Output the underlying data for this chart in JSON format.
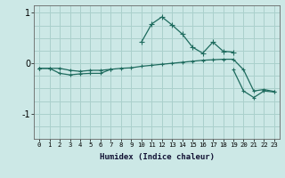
{
  "xlabel": "Humidex (Indice chaleur)",
  "x_values": [
    0,
    1,
    2,
    3,
    4,
    5,
    6,
    7,
    8,
    9,
    10,
    11,
    12,
    13,
    14,
    15,
    16,
    17,
    18,
    19,
    20,
    21,
    22,
    23
  ],
  "line1": [
    null,
    null,
    null,
    null,
    null,
    null,
    null,
    null,
    null,
    null,
    0.42,
    0.78,
    0.92,
    0.76,
    0.58,
    0.32,
    0.2,
    0.42,
    0.24,
    0.22,
    null,
    null,
    null,
    null
  ],
  "line2": [
    -0.1,
    -0.1,
    -0.1,
    -0.14,
    -0.16,
    -0.14,
    -0.14,
    -0.12,
    -0.1,
    -0.09,
    -0.06,
    -0.04,
    -0.02,
    0.0,
    0.02,
    0.04,
    0.06,
    0.07,
    0.08,
    0.08,
    -0.13,
    -0.55,
    -0.52,
    -0.56
  ],
  "line3": [
    -0.1,
    -0.1,
    -0.2,
    -0.23,
    -0.21,
    -0.2,
    -0.2,
    -0.12,
    null,
    null,
    null,
    null,
    null,
    null,
    null,
    null,
    null,
    null,
    null,
    null,
    null,
    null,
    null,
    null
  ],
  "line4": [
    -0.1,
    null,
    null,
    null,
    null,
    null,
    null,
    null,
    null,
    null,
    null,
    null,
    null,
    null,
    null,
    null,
    null,
    null,
    null,
    -0.13,
    -0.55,
    -0.68,
    -0.55,
    -0.57
  ],
  "bg_color": "#cce8e6",
  "line_color": "#1e6b5e",
  "grid_color": "#aad0cc",
  "ylim": [
    -1.5,
    1.15
  ],
  "yticks": [
    -1,
    0,
    1
  ],
  "ytick_labels": [
    "-1",
    "0",
    "1"
  ],
  "figsize": [
    3.2,
    2.0
  ],
  "dpi": 100
}
